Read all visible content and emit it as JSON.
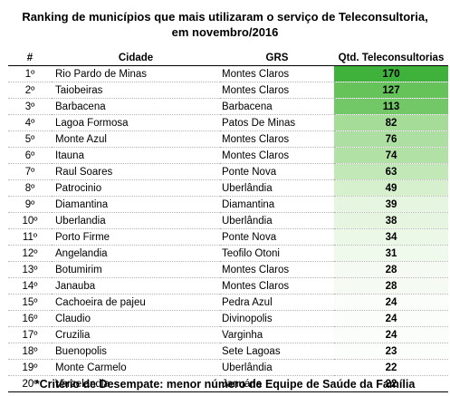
{
  "title": {
    "line1": "Ranking de municípios que mais utilizaram o serviço de Teleconsultoria,",
    "line2": "em novembro/2016"
  },
  "headers": {
    "rank": "#",
    "city": "Cidade",
    "grs": "GRS",
    "qtd": "Qtd. Teleconsultorias"
  },
  "rows": [
    {
      "rank": "1º",
      "city": "Rio Pardo de Minas",
      "grs": "Montes Claros",
      "qtd": "170",
      "color": "#3fb23c"
    },
    {
      "rank": "2º",
      "city": "Taiobeiras",
      "grs": "Montes Claros",
      "qtd": "127",
      "color": "#65c35a"
    },
    {
      "rank": "3º",
      "city": "Barbacena",
      "grs": "Barbacena",
      "qtd": "113",
      "color": "#72c866"
    },
    {
      "rank": "4º",
      "city": "Lagoa Formosa",
      "grs": "Patos De Minas",
      "qtd": "82",
      "color": "#a4dc98"
    },
    {
      "rank": "5º",
      "city": "Monte Azul",
      "grs": "Montes Claros",
      "qtd": "76",
      "color": "#aedfa2"
    },
    {
      "rank": "6º",
      "city": "Itauna",
      "grs": "Montes Claros",
      "qtd": "74",
      "color": "#b1e1a5"
    },
    {
      "rank": "7º",
      "city": "Raul Soares",
      "grs": "Ponte Nova",
      "qtd": "63",
      "color": "#c2e8b8"
    },
    {
      "rank": "8º",
      "city": "Patrocinio",
      "grs": "Uberlândia",
      "qtd": "49",
      "color": "#d6f0cd"
    },
    {
      "rank": "9º",
      "city": "Diamantina",
      "grs": "Diamantina",
      "qtd": "39",
      "color": "#e5f5df"
    },
    {
      "rank": "10º",
      "city": "Uberlandia",
      "grs": "Uberlândia",
      "qtd": "38",
      "color": "#e6f5e0"
    },
    {
      "rank": "11º",
      "city": "Porto Firme",
      "grs": "Ponte Nova",
      "qtd": "34",
      "color": "#ecf8e7"
    },
    {
      "rank": "12º",
      "city": "Angelandia",
      "grs": "Teofilo Otoni",
      "qtd": "31",
      "color": "#f0faec"
    },
    {
      "rank": "13º",
      "city": "Botumirim",
      "grs": "Montes Claros",
      "qtd": "28",
      "color": "#f5fbf2"
    },
    {
      "rank": "14º",
      "city": "Janauba",
      "grs": "Montes Claros",
      "qtd": "28",
      "color": "#f5fbf2"
    },
    {
      "rank": "15º",
      "city": "Cachoeira de pajeu",
      "grs": "Pedra Azul",
      "qtd": "24",
      "color": "#fafdf9"
    },
    {
      "rank": "16º",
      "city": "Claudio",
      "grs": "Divinopolis",
      "qtd": "24",
      "color": "#fafdf9"
    },
    {
      "rank": "17º",
      "city": "Cruzilia",
      "grs": "Varginha",
      "qtd": "24",
      "color": "#fafdf9"
    },
    {
      "rank": "18º",
      "city": "Buenopolis",
      "grs": "Sete Lagoas",
      "qtd": "23",
      "color": "#fcfefb"
    },
    {
      "rank": "19º",
      "city": "Monte Carmelo",
      "grs": "Uberlândia",
      "qtd": "22",
      "color": "#ffffff"
    },
    {
      "rank": "20º",
      "city": "Varzelandia",
      "grs": "Januária",
      "qtd": "22",
      "color": "#ffffff"
    }
  ],
  "footnote": "*Critério de Desempate: menor número de Equipe de Saúde da Família"
}
